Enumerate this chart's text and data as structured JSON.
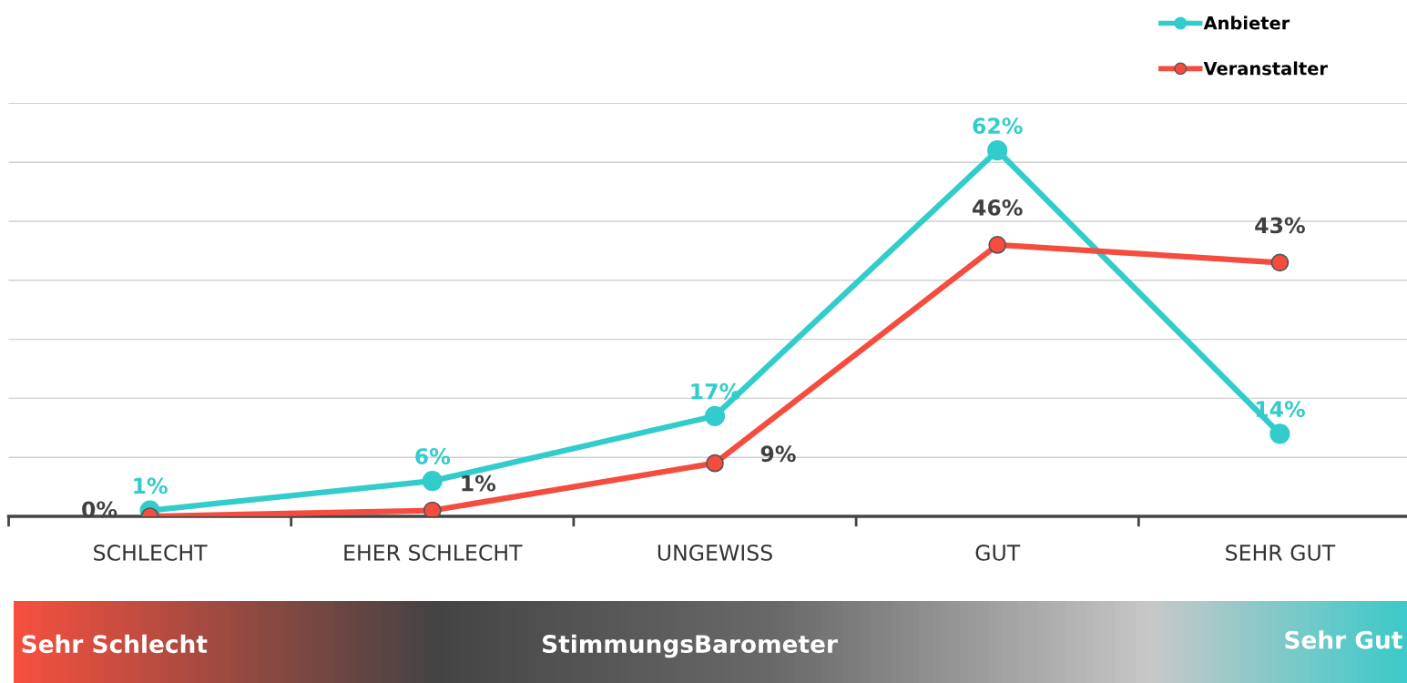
{
  "chart_data": {
    "type": "line",
    "categories": [
      "SCHLECHT",
      "EHER SCHLECHT",
      "UNGEWISS",
      "GUT",
      "SEHR GUT"
    ],
    "series": [
      {
        "name": "Anbieter",
        "color": "#33cccc",
        "values": [
          1,
          6,
          17,
          62,
          14
        ],
        "value_labels": [
          "1%",
          "6%",
          "17%",
          "62%",
          "14%"
        ]
      },
      {
        "name": "Veranstalter",
        "color": "#f44d3f",
        "values": [
          0,
          1,
          9,
          46,
          43
        ],
        "value_labels": [
          "0%",
          "1%",
          "9%",
          "46%",
          "43%"
        ]
      }
    ],
    "tick_labels": "x",
    "grid": "y",
    "legend": "top right",
    "marker": "circle",
    "line_style": "solid",
    "annotations": [
      "Sehr Schlecht",
      "StimmungsBarometer",
      "Sehr Gut"
    ]
  }
}
